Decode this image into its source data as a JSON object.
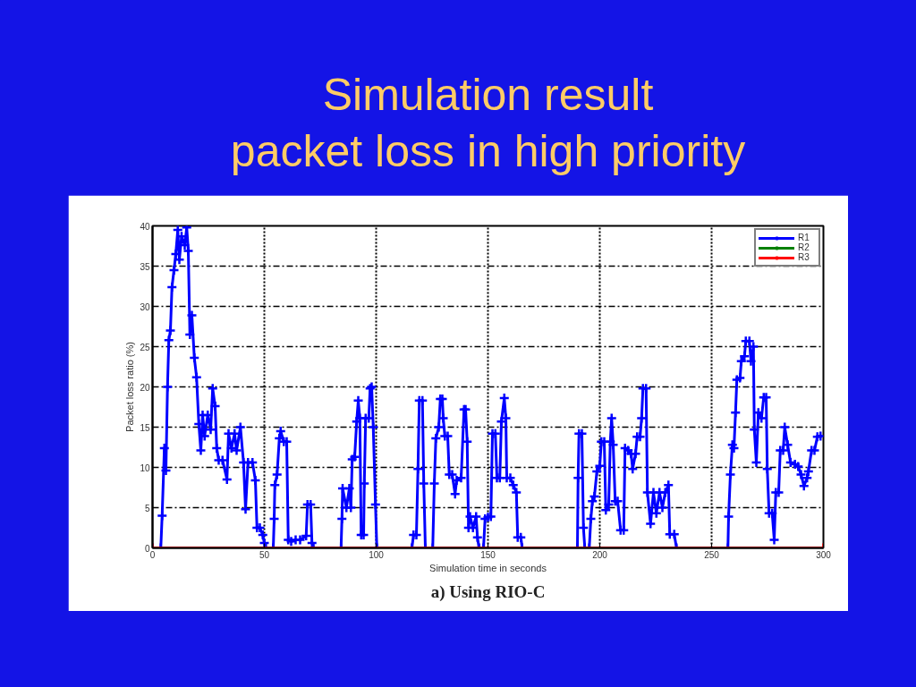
{
  "chart_data": {
    "type": "line",
    "title": "Simulation result\npacket loss in high priority",
    "xlabel": "Simulation time in seconds",
    "ylabel": "Packet loss ratio (%)",
    "annotations": [
      "a) Using RIO-C"
    ],
    "xlim": [
      0,
      300
    ],
    "ylim": [
      0,
      40
    ],
    "xticks": [
      0,
      50,
      100,
      150,
      200,
      250,
      300
    ],
    "yticks": [
      0,
      5,
      10,
      15,
      20,
      25,
      30,
      35,
      40
    ],
    "grid": true,
    "legend": "top right",
    "marker": "cross",
    "line_style": "solid",
    "series": [
      {
        "name": "R1",
        "color": "#0000ff",
        "x": [
          0,
          3.7,
          4.3,
          5.3,
          6,
          6.7,
          7.3,
          8,
          8.7,
          9.6,
          10.4,
          11.3,
          12,
          13,
          14.4,
          15.3,
          16,
          16.7,
          17.6,
          18.7,
          19.7,
          20.7,
          21.6,
          22.4,
          23.3,
          24.7,
          26,
          26.9,
          28,
          28.7,
          29.6,
          31.3,
          33.3,
          34,
          35.3,
          36.7,
          37.6,
          39.3,
          40.7,
          41.6,
          42.7,
          44.7,
          46,
          46.7,
          48,
          49.3,
          50,
          50.7,
          54,
          54.4,
          54.7,
          55.7,
          56.7,
          57.3,
          58.7,
          60,
          60.7,
          62,
          64,
          66,
          68.7,
          69.3,
          70.7,
          71.3,
          72,
          84.3,
          84.7,
          85,
          86.7,
          88,
          88.7,
          89.3,
          90.4,
          91.3,
          92,
          92.7,
          93.3,
          94.4,
          94.7,
          95.3,
          96.7,
          97.3,
          98,
          98.7,
          99.7,
          100.3,
          116,
          116.7,
          118,
          118.7,
          119.3,
          120.7,
          121.3,
          122,
          125.3,
          126,
          126.7,
          128,
          128.7,
          129.6,
          130,
          130.7,
          132,
          132.7,
          134,
          135.3,
          136,
          138,
          139.3,
          140,
          140.7,
          141.3,
          142,
          143.3,
          144.7,
          145.3,
          146,
          148,
          148.7,
          150,
          151.3,
          152,
          153.3,
          154,
          155.3,
          156,
          157.3,
          158,
          158.4,
          160,
          161.3,
          162.7,
          163.3,
          164.7,
          165.3,
          190,
          190.3,
          190.7,
          192,
          192.7,
          193.3,
          195.3,
          196,
          196.7,
          197.6,
          198.7,
          200,
          200.7,
          202,
          202.7,
          204,
          204.7,
          205.3,
          206,
          206.9,
          208,
          209.3,
          210.7,
          211.3,
          212.7,
          214,
          214.7,
          216,
          216.7,
          218,
          218.7,
          219.3,
          220.7,
          221.3,
          222.7,
          224,
          225.3,
          226.7,
          228,
          229.3,
          230.7,
          231.3,
          233.3,
          234.3,
          257.3,
          257.6,
          258.4,
          259.3,
          260,
          260.7,
          261.3,
          262.7,
          263.3,
          264.7,
          265.3,
          266.9,
          267.6,
          268.7,
          269.1,
          270,
          270.9,
          272.3,
          273.3,
          274.4,
          274.9,
          275.7,
          277.1,
          278,
          278.7,
          280,
          280.7,
          282,
          282.7,
          284,
          285.3,
          287.3,
          288.7,
          290,
          291.3,
          292.7,
          293.3,
          294.7,
          296,
          297.3,
          298.7
        ],
        "values": [
          0,
          0,
          4.0,
          12.4,
          9.6,
          20,
          25.8,
          27,
          32.4,
          34.5,
          36.5,
          39.5,
          35.8,
          38.7,
          37.6,
          39.8,
          36.9,
          26.5,
          28.9,
          23.6,
          21.2,
          15.4,
          12.1,
          16.5,
          13.9,
          16.5,
          14.7,
          19.8,
          17.6,
          12.4,
          10.9,
          10.9,
          8.5,
          14.2,
          12.4,
          14.2,
          12.1,
          15.0,
          10.6,
          4.8,
          10.6,
          10.6,
          8.4,
          2.5,
          2.5,
          1.6,
          0.6,
          0,
          0,
          3.6,
          7.8,
          9.1,
          13.6,
          14.5,
          13.2,
          13.2,
          1.0,
          0.8,
          1.0,
          1.0,
          1.5,
          5.4,
          5.4,
          0.6,
          0,
          0,
          3.6,
          7.4,
          5.0,
          7.4,
          5.0,
          11.0,
          11.3,
          15.7,
          18.3,
          16.1,
          1.6,
          1.6,
          8.0,
          16.1,
          16.1,
          19.8,
          20.0,
          15.0,
          5.4,
          0,
          0,
          1.6,
          1.6,
          9.8,
          18.3,
          18.3,
          8.0,
          0,
          0,
          8.0,
          13.6,
          15.0,
          18.5,
          18.5,
          16.1,
          13.9,
          13.9,
          9.1,
          9.1,
          6.7,
          8.4,
          8.7,
          17.2,
          17.2,
          13.2,
          2.5,
          3.9,
          2.5,
          3.9,
          1.3,
          0,
          0,
          3.6,
          3.8,
          3.9,
          14.2,
          14.2,
          8.7,
          8.7,
          15.7,
          18.6,
          16.1,
          8.7,
          8.7,
          7.8,
          6.9,
          1.3,
          1.3,
          0,
          0,
          8.7,
          14.2,
          14.2,
          2.5,
          0,
          0,
          3.6,
          5.8,
          6.4,
          9.5,
          10.2,
          13.2,
          13.2,
          4.7,
          5.4,
          13.2,
          16.1,
          12.8,
          5.8,
          5.8,
          2.2,
          2.2,
          12.4,
          12.1,
          11.7,
          9.8,
          11.7,
          13.8,
          13.8,
          16.1,
          19.8,
          19.8,
          6.9,
          3.0,
          6.9,
          4.3,
          6.9,
          5.0,
          6.9,
          7.8,
          1.7,
          1.7,
          0,
          0,
          3.9,
          9.1,
          12.8,
          12.4,
          16.8,
          20.9,
          21.1,
          23.2,
          23.8,
          25.7,
          25.7,
          23.2,
          25.0,
          14.7,
          10.6,
          16.8,
          16.1,
          18.7,
          18.7,
          9.8,
          4.3,
          4.3,
          1.0,
          6.9,
          6.9,
          12.1,
          12.1,
          15.0,
          12.8,
          10.6,
          10.4,
          10.1,
          9.1,
          7.7,
          8.7,
          9.5,
          12.1,
          12.1,
          13.8,
          13.9
        ]
      },
      {
        "name": "R2",
        "color": "#008000",
        "values": [
          null
        ]
      },
      {
        "name": "R3",
        "color": "#ff0000",
        "x": [
          0,
          300
        ],
        "values": [
          0,
          0
        ]
      }
    ]
  }
}
